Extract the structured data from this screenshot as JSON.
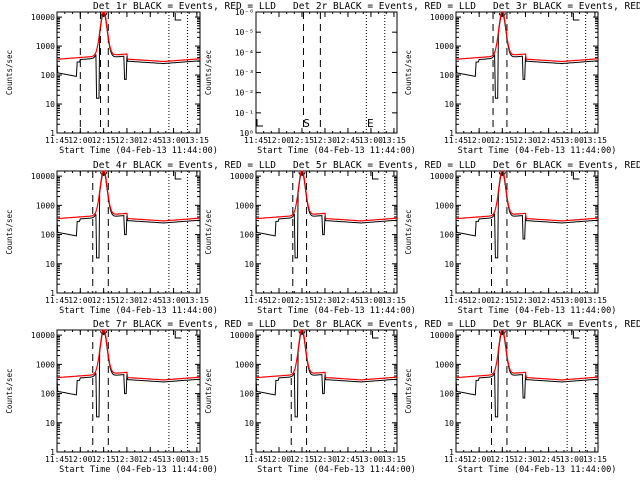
{
  "figure": {
    "x_axis_title": "Start Time (04-Feb-13 11:44:00)",
    "y_axis_title": "Counts/sec"
  },
  "x_tick_labels": [
    "11:45",
    "12:00",
    "12:15",
    "12:30",
    "12:45",
    "13:00",
    "13:15"
  ],
  "y_tick_labels": [
    "1",
    "10",
    "100",
    "1000",
    "10000"
  ],
  "y_tick_labels_small": [
    "10⁰",
    "10⁻¹",
    "10⁻²",
    "10⁻³",
    "10⁻⁴",
    "10⁻⁵",
    "10⁻⁶"
  ],
  "colors": {
    "events": "#000000",
    "lld": "#ff0000",
    "axes": "#000000"
  },
  "flag_letters": [
    "S",
    "E"
  ],
  "chart_data": [
    {
      "title": "Det 1r BLACK = Events, RED = LLD",
      "type": "line",
      "y_scale": "log",
      "xlim_min": [
        1,
        93
      ],
      "ylim": [
        1,
        15000
      ],
      "empty": false,
      "variant": 1,
      "dashed_lines_min": [
        16,
        29,
        34
      ],
      "dotted_lines_min": [
        73,
        85
      ],
      "series": [
        {
          "name": "Events",
          "color": "#000000"
        },
        {
          "name": "LLD",
          "color": "#ff0000"
        }
      ]
    },
    {
      "title": "Det 2r BLACK = Events, RED = LLD",
      "type": "line",
      "y_scale": "log",
      "xlim_min": [
        1,
        93
      ],
      "ylim": [
        1.0,
        1e-06
      ],
      "empty": true,
      "variant": 0,
      "dashed_lines_min": [
        32,
        43
      ],
      "dotted_lines_min": [
        73,
        85
      ],
      "series": []
    },
    {
      "title": "Det 3r BLACK = Events, RED = LLD",
      "type": "line",
      "y_scale": "log",
      "xlim_min": [
        1,
        93
      ],
      "ylim": [
        1,
        15000
      ],
      "empty": false,
      "variant": 1,
      "dashed_lines_min": [
        25,
        34
      ],
      "dotted_lines_min": [
        73,
        85
      ],
      "series": [
        {
          "name": "Events",
          "color": "#000000"
        },
        {
          "name": "LLD",
          "color": "#ff0000"
        }
      ]
    },
    {
      "title": "Det 4r BLACK = Events, RED = LLD",
      "type": "line",
      "y_scale": "log",
      "xlim_min": [
        1,
        93
      ],
      "ylim": [
        1,
        15000
      ],
      "empty": false,
      "variant": 0,
      "dashed_lines_min": [
        24,
        34
      ],
      "dotted_lines_min": [
        73,
        85
      ],
      "series": [
        {
          "name": "Events",
          "color": "#000000"
        },
        {
          "name": "LLD",
          "color": "#ff0000"
        }
      ]
    },
    {
      "title": "Det 5r BLACK = Events, RED = LLD",
      "type": "line",
      "y_scale": "log",
      "xlim_min": [
        1,
        93
      ],
      "ylim": [
        1,
        15000
      ],
      "empty": false,
      "variant": 0,
      "dashed_lines_min": [
        25,
        34
      ],
      "dotted_lines_min": [
        73,
        85
      ],
      "series": [
        {
          "name": "Events",
          "color": "#000000"
        },
        {
          "name": "LLD",
          "color": "#ff0000"
        }
      ]
    },
    {
      "title": "Det 6r BLACK = Events, RED = LLD",
      "type": "line",
      "y_scale": "log",
      "xlim_min": [
        1,
        93
      ],
      "ylim": [
        1,
        15000
      ],
      "empty": false,
      "variant": 1,
      "dashed_lines_min": [
        24,
        34
      ],
      "dotted_lines_min": [
        73,
        85
      ],
      "series": [
        {
          "name": "Events",
          "color": "#000000"
        },
        {
          "name": "LLD",
          "color": "#ff0000"
        }
      ]
    },
    {
      "title": "Det 7r BLACK = Events, RED = LLD",
      "type": "line",
      "y_scale": "log",
      "xlim_min": [
        1,
        93
      ],
      "ylim": [
        1,
        15000
      ],
      "empty": false,
      "variant": 0,
      "dashed_lines_min": [
        24,
        34
      ],
      "dotted_lines_min": [
        73,
        85
      ],
      "series": [
        {
          "name": "Events",
          "color": "#000000"
        },
        {
          "name": "LLD",
          "color": "#ff0000"
        }
      ]
    },
    {
      "title": "Det 8r BLACK = Events, RED = LLD",
      "type": "line",
      "y_scale": "log",
      "xlim_min": [
        1,
        93
      ],
      "ylim": [
        1,
        15000
      ],
      "empty": false,
      "variant": 0,
      "dashed_lines_min": [
        24,
        34
      ],
      "dotted_lines_min": [
        73,
        85
      ],
      "series": [
        {
          "name": "Events",
          "color": "#000000"
        },
        {
          "name": "LLD",
          "color": "#ff0000"
        }
      ]
    },
    {
      "title": "Det 9r BLACK = Events, RED = LLD",
      "type": "line",
      "y_scale": "log",
      "xlim_min": [
        1,
        93
      ],
      "ylim": [
        1,
        15000
      ],
      "empty": false,
      "variant": 1,
      "dashed_lines_min": [
        24,
        34
      ],
      "dotted_lines_min": [
        73,
        85
      ],
      "series": [
        {
          "name": "Events",
          "color": "#000000"
        },
        {
          "name": "LLD",
          "color": "#ff0000"
        }
      ]
    }
  ]
}
